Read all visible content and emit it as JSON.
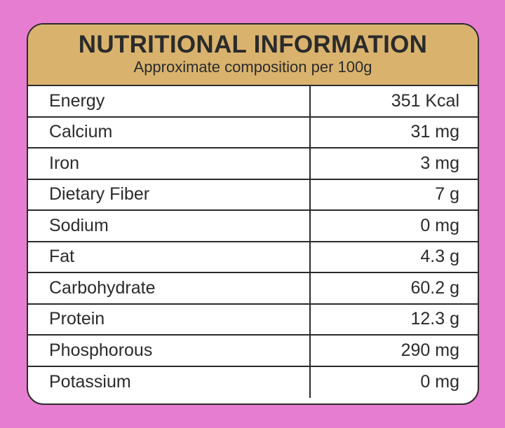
{
  "header": {
    "title": "NUTRITIONAL INFORMATION",
    "subtitle": "Approximate composition per 100g"
  },
  "table": {
    "rows": [
      [
        "Energy",
        "351 Kcal"
      ],
      [
        "Calcium",
        "31 mg"
      ],
      [
        "Iron",
        "3 mg"
      ],
      [
        "Dietary Fiber",
        "7 g"
      ],
      [
        "Sodium",
        "0 mg"
      ],
      [
        "Fat",
        "4.3 g"
      ],
      [
        "Carbohydrate",
        "60.2 g"
      ],
      [
        "Protein",
        "12.3 g"
      ],
      [
        "Phosphorous",
        "290 mg"
      ],
      [
        "Potassium",
        "0 mg"
      ]
    ]
  }
}
